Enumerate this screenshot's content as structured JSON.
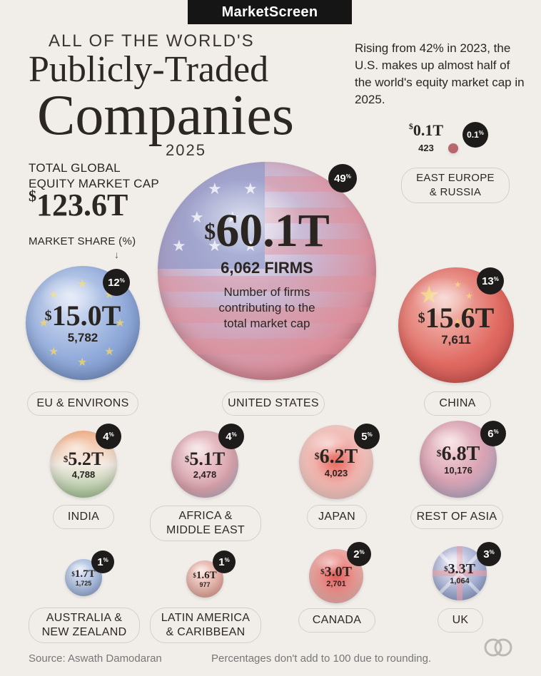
{
  "brand": "MarketScreen",
  "title": {
    "line_top": "ALL OF THE WORLD'S",
    "line1": "Publicly-Traded",
    "line2": "Companies",
    "year": "2025"
  },
  "intro": "Rising from 42% in 2023, the U.S. makes up almost half of the world's equity market cap in 2025.",
  "total": {
    "label_line1": "TOTAL GLOBAL",
    "label_line2": "EQUITY MARKET CAP",
    "currency": "$",
    "value": "123.6T"
  },
  "market_share_label": "MARKET SHARE (%)",
  "firms_caption": "Number of firms contributing to the total market cap",
  "firms_word": "FIRMS",
  "regions": [
    {
      "name": "UNITED STATES",
      "value": "60.1T",
      "firms": "6,062",
      "pct": "49"
    },
    {
      "name": "EU & ENVIRONS",
      "value": "15.0T",
      "firms": "5,782",
      "pct": "12"
    },
    {
      "name": "CHINA",
      "value": "15.6T",
      "firms": "7,611",
      "pct": "13"
    },
    {
      "name": "EAST EUROPE & RUSSIA",
      "value": "0.1T",
      "firms": "423",
      "pct": "0.1"
    },
    {
      "name": "INDIA",
      "value": "5.2T",
      "firms": "4,788",
      "pct": "4"
    },
    {
      "name": "AFRICA & MIDDLE EAST",
      "value": "5.1T",
      "firms": "2,478",
      "pct": "4"
    },
    {
      "name": "JAPAN",
      "value": "6.2T",
      "firms": "4,023",
      "pct": "5"
    },
    {
      "name": "REST OF ASIA",
      "value": "6.8T",
      "firms": "10,176",
      "pct": "6"
    },
    {
      "name": "AUSTRALIA & NEW ZEALAND",
      "value": "1.7T",
      "firms": "1,725",
      "pct": "1"
    },
    {
      "name": "LATIN AMERICA & CARIBBEAN",
      "value": "1.6T",
      "firms": "977",
      "pct": "1"
    },
    {
      "name": "CANADA",
      "value": "3.0T",
      "firms": "2,701",
      "pct": "2"
    },
    {
      "name": "UK",
      "value": "3.3T",
      "firms": "1,064",
      "pct": "3"
    }
  ],
  "footer": {
    "source": "Source: Aswath Damodaran",
    "note": "Percentages don't add to 100 due to rounding."
  },
  "colors": {
    "background": "#f1eeea",
    "badge": "#1e1c1b",
    "us": "#d98f9c",
    "eu": "#8fa9d9",
    "china": "#e06a62",
    "india": "#e8b08c",
    "africa_me": "#d9a3ad",
    "japan": "#f0b0aa",
    "rest_of_asia": "#c9a8c6",
    "anz": "#a9bde0",
    "latam": "#e9b2a8",
    "canada": "#eb9a95",
    "uk": "#a9b4d6"
  }
}
